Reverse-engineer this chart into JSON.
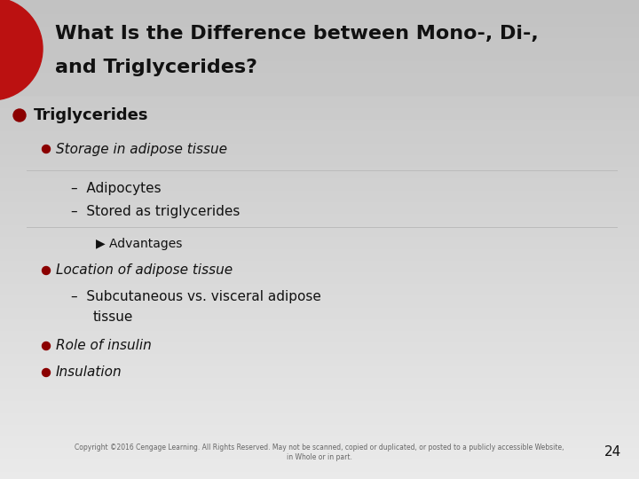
{
  "title_line1": "What Is the Difference between Mono-, Di-,",
  "title_line2": "and Triglycerides?",
  "title_fontsize": 16,
  "title_color": "#111111",
  "red_circle_color": "#bb1111",
  "bullet1": "Triglycerides",
  "bullet1_fontsize": 13,
  "sub_bullet1": "Storage in adipose tissue",
  "sub_bullet1_fontsize": 11,
  "dash1": "Adipocytes",
  "dash2": "Stored as triglycerides",
  "dash_fontsize": 11,
  "arrow_bullet": "Advantages",
  "arrow_fontsize": 10,
  "sub_bullet2": "Location of adipose tissue",
  "sub_bullet2_fontsize": 11,
  "dash3_line1": "Subcutaneous vs. visceral adipose",
  "dash3_line2": "tissue",
  "dash3_fontsize": 11,
  "sub_bullet3": "Role of insulin",
  "sub_bullet3_fontsize": 11,
  "sub_bullet4": "Insulation",
  "sub_bullet4_fontsize": 11,
  "footer_text": "Copyright ©2016 Cengage Learning. All Rights Reserved. May not be scanned, copied or duplicated, or posted to a publicly accessible Website,\nin Whole or in part.",
  "footer_fontsize": 5.5,
  "page_number": "24",
  "page_number_fontsize": 11,
  "bullet_color": "#8b0000",
  "text_color": "#111111",
  "divider_color": "#bbbbbb",
  "bg_top": "#c8c8c8",
  "bg_bottom": "#e8e8e8"
}
